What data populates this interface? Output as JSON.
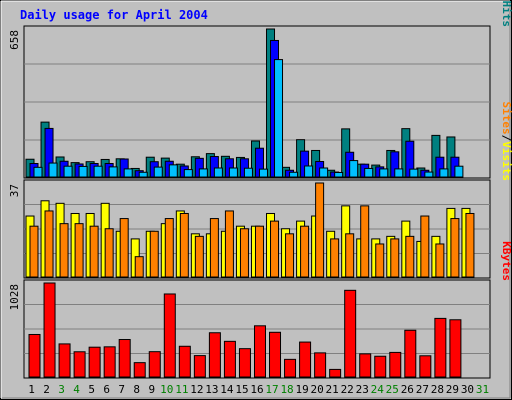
{
  "chart_data": {
    "type": "bar",
    "title": "Daily usage for April 2004",
    "categories": [
      "1",
      "2",
      "3",
      "4",
      "5",
      "6",
      "7",
      "8",
      "9",
      "10",
      "11",
      "12",
      "13",
      "14",
      "15",
      "16",
      "17",
      "18",
      "19",
      "20",
      "21",
      "22",
      "23",
      "24",
      "25",
      "26",
      "27",
      "28",
      "29",
      "30",
      "31"
    ],
    "weekend_days": [
      "3",
      "4",
      "10",
      "11",
      "17",
      "18",
      "24",
      "25",
      "31"
    ],
    "panels": [
      {
        "id": "hits",
        "ymax_label": "658",
        "ymax": 658,
        "legend": [
          "Pages",
          "/",
          "Files",
          "/",
          "Hits"
        ],
        "legend_colors": [
          "#00c0ff",
          "#000000",
          "#0000ff",
          "#000000",
          "#008080"
        ],
        "series": [
          {
            "name": "Hits",
            "color": "#008080",
            "values": [
              79,
              244,
              89,
              64,
              68,
              78,
              81,
              38,
              88,
              84,
              57,
              90,
              104,
              92,
              87,
              160,
              658,
              43,
              166,
              118,
              30,
              214,
              57,
              53,
              118,
              215,
              40,
              185,
              178,
              0,
              0
            ]
          },
          {
            "name": "Files",
            "color": "#0000ff",
            "values": [
              60,
              216,
              70,
              58,
              60,
              60,
              80,
              28,
              68,
              70,
              49,
              83,
              91,
              81,
              81,
              128,
              607,
              30,
              115,
              69,
              22,
              110,
              57,
              45,
              112,
              159,
              30,
              88,
              88,
              0,
              0
            ]
          },
          {
            "name": "Pages",
            "color": "#00c0ff",
            "values": [
              43,
              62,
              48,
              47,
              48,
              45,
              36,
              21,
              44,
              54,
              33,
              36,
              40,
              40,
              39,
              35,
              522,
              21,
              49,
              40,
              20,
              73,
              38,
              36,
              36,
              35,
              22,
              36,
              48,
              0,
              0
            ]
          }
        ]
      },
      {
        "id": "visits",
        "ymax_label": "37",
        "ymax": 37,
        "legend": [
          "Sites",
          "/",
          "Visits"
        ],
        "legend_colors": [
          "#ff8000",
          "#000000",
          "#ffff00"
        ],
        "series": [
          {
            "name": "Visits",
            "color": "#ffff00",
            "values": [
              24,
              30,
              29,
              25,
              25,
              29,
              18,
              15,
              18,
              21,
              26,
              17,
              17,
              18,
              20,
              20,
              25,
              19,
              22,
              24,
              18,
              28,
              15,
              15,
              16,
              22,
              14,
              16,
              27,
              27,
              0
            ]
          },
          {
            "name": "Sites",
            "color": "#ff8000",
            "values": [
              20,
              26,
              21,
              21,
              20,
              19,
              23,
              8,
              18,
              23,
              25,
              16,
              23,
              26,
              19,
              20,
              22,
              17,
              20,
              37,
              15,
              17,
              28,
              13,
              15,
              16,
              24,
              13,
              23,
              25,
              0
            ]
          }
        ]
      },
      {
        "id": "kbytes",
        "ymax_label": "1028",
        "ymax": 1028,
        "legend": [
          "KBytes"
        ],
        "legend_colors": [
          "#ff0000"
        ],
        "series": [
          {
            "name": "KBytes",
            "color": "#ff0000",
            "values": [
              465,
              1028,
              362,
              276,
              326,
              330,
              410,
              157,
              277,
              908,
              336,
              234,
              484,
              390,
              310,
              560,
              489,
              193,
              382,
              264,
              83,
              948,
              253,
              227,
              269,
              511,
              232,
              641,
              626,
              0,
              0
            ]
          }
        ]
      }
    ]
  }
}
